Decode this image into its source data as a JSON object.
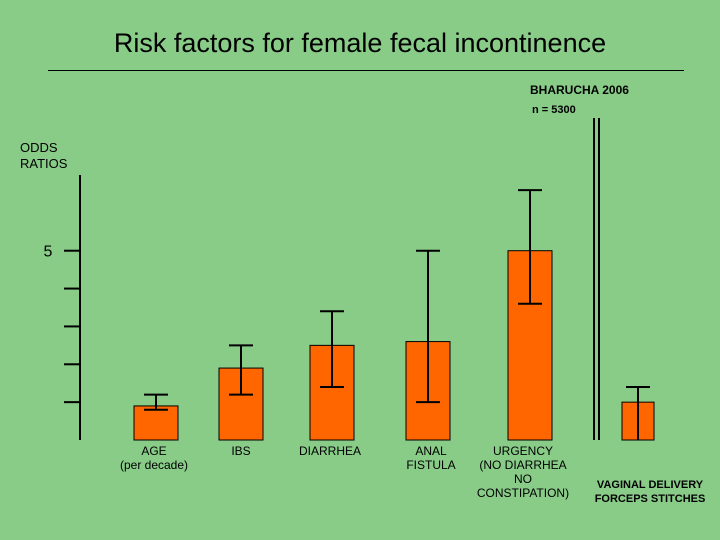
{
  "chart_data": {
    "type": "bar",
    "title": "Risk factors for female fecal incontinence",
    "source": "BHARUCHA 2006",
    "sample": "n = 5300",
    "ylabel": "ODDS\nRATIOS",
    "ylim": [
      0,
      7
    ],
    "ytick_label": {
      "value": 5,
      "text": "5"
    },
    "ticks": [
      1,
      2,
      3,
      4,
      5
    ],
    "categories": [
      {
        "lines": [
          "AGE",
          "(per decade)"
        ],
        "bold": false
      },
      {
        "lines": [
          "IBS"
        ],
        "bold": false
      },
      {
        "lines": [
          "DIARRHEA"
        ],
        "bold": false
      },
      {
        "lines": [
          "ANAL",
          "FISTULA"
        ],
        "bold": false
      },
      {
        "lines": [
          "URGENCY",
          "(NO DIARRHEA",
          "NO",
          "CONSTIPATION)"
        ],
        "bold": false
      },
      {
        "lines": [
          "VAGINAL DELIVERY",
          "FORCEPS STITCHES"
        ],
        "bold": true
      }
    ],
    "values": [
      0.9,
      1.9,
      2.5,
      2.6,
      5.0,
      1.0
    ],
    "err_low": [
      0.8,
      1.2,
      1.4,
      1.0,
      3.6,
      0.0
    ],
    "err_high": [
      1.2,
      2.5,
      3.4,
      5.0,
      6.6,
      1.4
    ],
    "bar_color": "#ff6600",
    "background": "#88cc88"
  }
}
